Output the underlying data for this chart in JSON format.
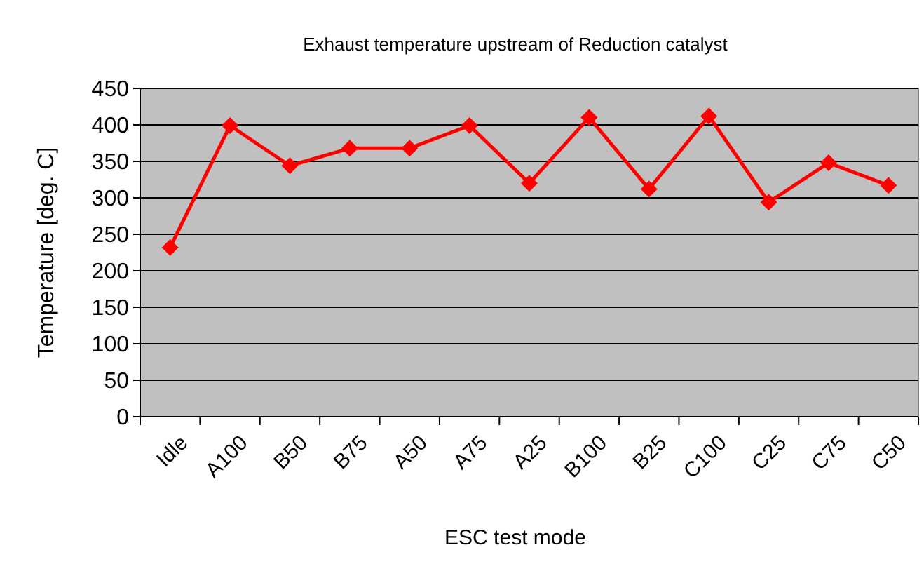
{
  "chart_data": {
    "type": "line",
    "title": "Exhaust temperature upstream of Reduction catalyst",
    "xlabel": "ESC test mode",
    "ylabel": "Temperature [deg. C]",
    "categories": [
      "Idle",
      "A100",
      "B50",
      "B75",
      "A50",
      "A75",
      "A25",
      "B100",
      "B25",
      "C100",
      "C25",
      "C75",
      "C50"
    ],
    "series": [
      {
        "color": "#ff0000",
        "values": [
          232,
          399,
          344,
          368,
          368,
          399,
          320,
          410,
          312,
          412,
          294,
          348,
          317
        ]
      }
    ],
    "ylim": [
      0,
      450
    ],
    "yticks": [
      0,
      50,
      100,
      150,
      200,
      250,
      300,
      350,
      400,
      450
    ],
    "grid": "y",
    "marker": "diamond",
    "line_style": "solid"
  }
}
